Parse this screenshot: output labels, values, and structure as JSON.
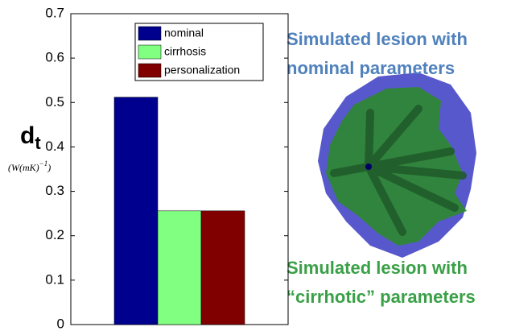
{
  "chart_data": {
    "type": "bar",
    "y_label": "d",
    "y_label_sub": "t",
    "y_unit": "(W(mK)",
    "y_unit_sup": "−1",
    "y_unit_close": ")",
    "categories": [
      null
    ],
    "series": [
      {
        "name": "nominal",
        "color": "#00008f",
        "values": [
          0.512
        ]
      },
      {
        "name": "cirrhosis",
        "color": "#80ff80",
        "values": [
          0.256
        ]
      },
      {
        "name": "personalization",
        "color": "#800000",
        "values": [
          0.256
        ]
      }
    ],
    "ylim": [
      0,
      0.7
    ],
    "yticks": [
      0,
      0.1,
      0.2,
      0.3,
      0.4,
      0.5,
      0.6,
      0.7
    ],
    "legend": "upper-right",
    "annotations": [
      {
        "lines": [
          "Simulated lesion with",
          "nominal parameters"
        ],
        "color": "#4f81bd"
      },
      {
        "lines": [
          "Simulated lesion with",
          "“cirrhotic” parameters"
        ],
        "color": "#3aa047"
      }
    ]
  }
}
